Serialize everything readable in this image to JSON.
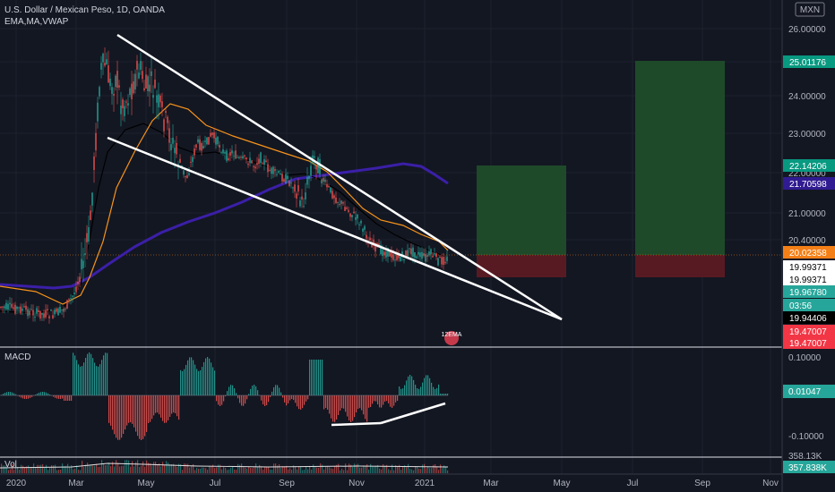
{
  "header": {
    "title": "U.S. Dollar / Mexican Peso, 1D, OANDA",
    "indicators": "EMA,MA,VWAP",
    "currency": "MXN"
  },
  "panes": {
    "macd_label": "MACD",
    "vol_label": "Vol"
  },
  "chart_data": {
    "type": "candlestick",
    "symbol": "USDMXN",
    "timeframe": "1D",
    "ylim": [
      19.3,
      26.3
    ],
    "y_ticks": [
      "26.00000",
      "25.00000",
      "24.00000",
      "23.00000",
      "22.00000",
      "21.00000",
      "20.40000"
    ],
    "x_ticks": [
      "2020",
      "Mar",
      "May",
      "Jul",
      "Sep",
      "Nov",
      "2021",
      "Mar",
      "May",
      "Jul",
      "Sep",
      "Nov"
    ],
    "price_tags": [
      {
        "value": "25.01176",
        "color": "#089981",
        "text_color": "#ffffff"
      },
      {
        "value": "22.14206",
        "color": "#089981",
        "text_color": "#ffffff"
      },
      {
        "value": "21.70598",
        "color": "#311b92",
        "text_color": "#ffffff"
      },
      {
        "value": "20.02358",
        "color": "#f57f17",
        "text_color": "#ffffff"
      },
      {
        "value": "19.99371",
        "color": "#ffffff",
        "text_color": "#000000"
      },
      {
        "value": "19.99371",
        "color": "#ffffff",
        "text_color": "#000000"
      },
      {
        "value": "19.96780",
        "color": "#26a69a",
        "text_color": "#ffffff"
      },
      {
        "value": "03:56",
        "color": "#26a69a",
        "text_color": "#ffffff"
      },
      {
        "value": "19.94406",
        "color": "#000000",
        "text_color": "#ffffff"
      },
      {
        "value": "19.47007",
        "color": "#f23645",
        "text_color": "#ffffff"
      },
      {
        "value": "19.47007",
        "color": "#f23645",
        "text_color": "#ffffff"
      }
    ],
    "macd_ticks": [
      "0.10000",
      "-0.10000"
    ],
    "macd_tag": "0.01047",
    "vol_tag": "357.838K",
    "vol_tag_partial": "358.13K",
    "ema_label": "12EMA",
    "colors": {
      "up": "#26a69a",
      "down": "#ef5350",
      "ema": "#f7931a",
      "vwap": "#3b1fa8",
      "ma": "#000000"
    }
  }
}
